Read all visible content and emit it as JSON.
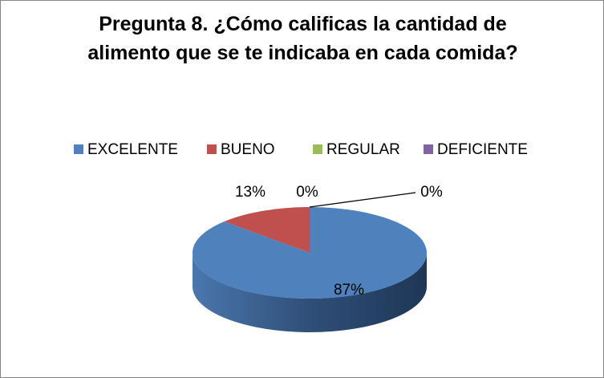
{
  "chart_data": {
    "type": "pie",
    "title": "Pregunta 8. ¿Cómo calificas la cantidad de alimento que se te indicaba en cada comida?",
    "categories": [
      "EXCELENTE",
      "BUENO",
      "REGULAR",
      "DEFICIENTE"
    ],
    "values": [
      87,
      13,
      0,
      0
    ],
    "value_labels": [
      "87%",
      "13%",
      "0%",
      "0%"
    ],
    "colors": [
      "#4f81bd",
      "#c0504d",
      "#9bbb59",
      "#8064a2"
    ],
    "legend": "top"
  }
}
